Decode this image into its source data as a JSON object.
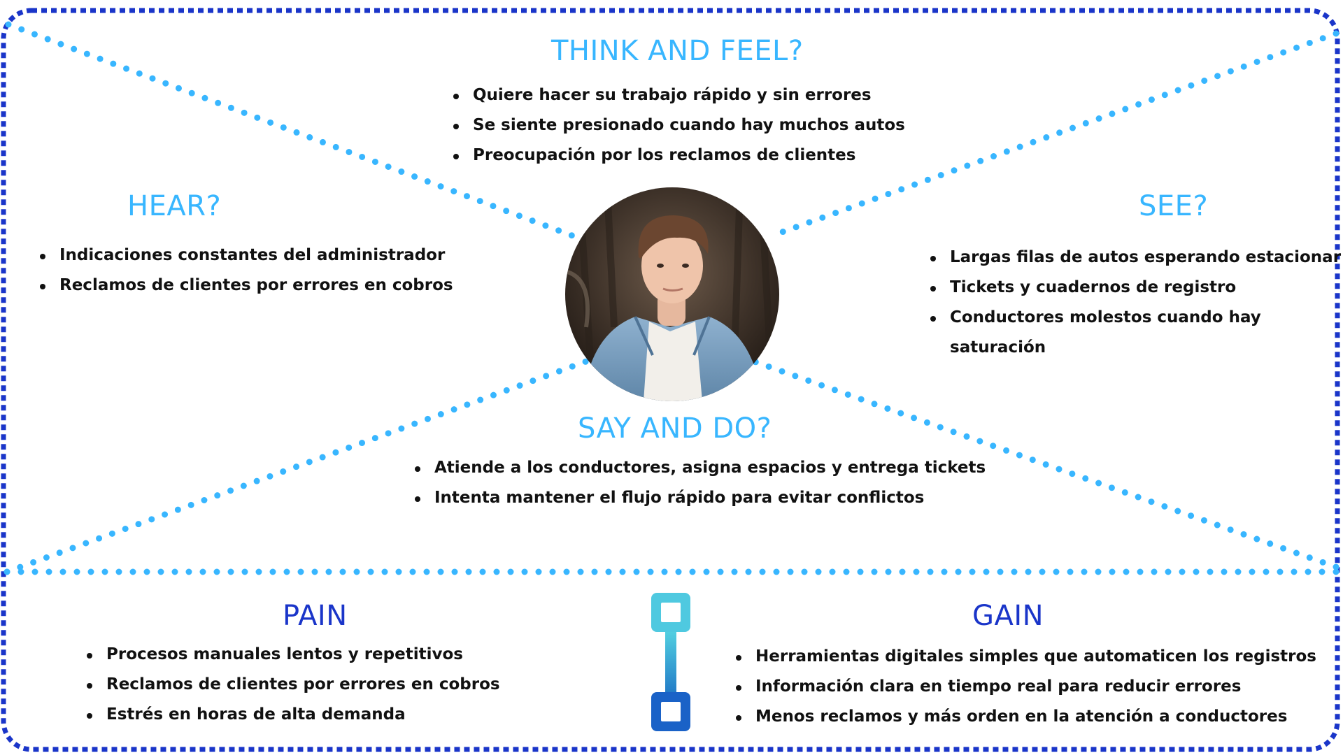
{
  "think_feel": {
    "title": "THINK AND FEEL?",
    "items": [
      "Quiere hacer su trabajo rápido y sin errores",
      "Se siente presionado cuando hay muchos autos",
      "Preocupación por los reclamos de clientes"
    ]
  },
  "hear": {
    "title": "HEAR?",
    "items": [
      "Indicaciones constantes del administrador",
      "Reclamos de clientes por errores en cobros"
    ]
  },
  "see": {
    "title": "SEE?",
    "items": [
      "Largas filas de autos esperando estacionar",
      "Tickets y cuadernos de registro",
      "Conductores molestos cuando hay saturación"
    ]
  },
  "say_do": {
    "title": "SAY AND DO?",
    "items": [
      "Atiende a los conductores, asigna espacios y entrega tickets",
      "Intenta mantener el flujo rápido para evitar conflictos"
    ]
  },
  "pain": {
    "title": "PAIN",
    "items": [
      "Procesos manuales lentos y repetitivos",
      "Reclamos de clientes por errores en cobros",
      "Estrés en horas de alta demanda"
    ]
  },
  "gain": {
    "title": "GAIN",
    "items": [
      "Herramientas digitales simples que automaticen los registros",
      "Información clara en tiempo real para reducir errores",
      "Menos reclamos y más orden en la atención a conductores"
    ]
  },
  "colors": {
    "heading_light": "#38b6ff",
    "heading_dark": "#1a35c9",
    "frame_border": "#1a35c9",
    "dotted_lines": "#38b6ff",
    "connector_top": "#5ce1e6",
    "connector_bottom": "#1565c0"
  },
  "icons": {
    "connector": "connector-link-icon",
    "avatar": "person-photo-avatar"
  }
}
